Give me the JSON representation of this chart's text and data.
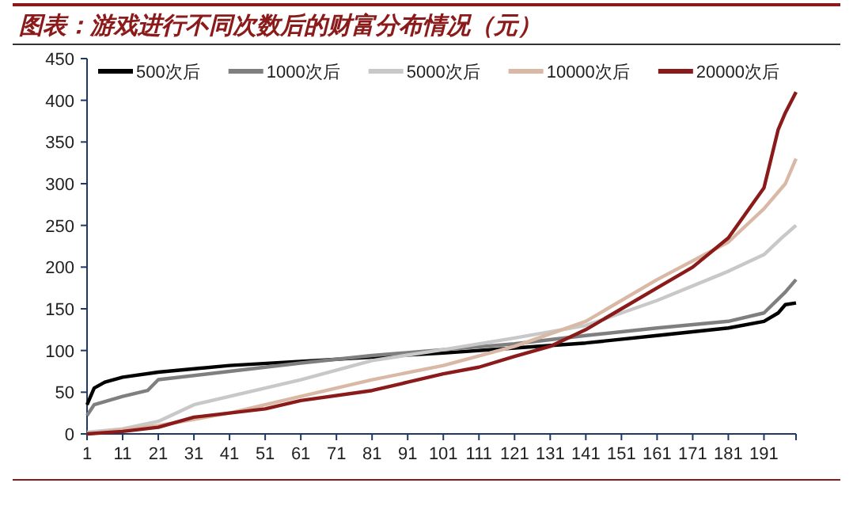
{
  "chart_data": {
    "type": "line",
    "title": "图表：游戏进行不同次数后的财富分布情况（元）",
    "xlim": [
      1,
      200
    ],
    "xticks": [
      1,
      11,
      21,
      31,
      41,
      51,
      61,
      71,
      81,
      91,
      101,
      111,
      121,
      131,
      141,
      151,
      161,
      171,
      181,
      191
    ],
    "ylim": [
      0,
      450
    ],
    "yticks": [
      0,
      50,
      100,
      150,
      200,
      250,
      300,
      350,
      400,
      450
    ],
    "legend": "top",
    "grid": false,
    "marker": "none",
    "line_style": "solid",
    "series": [
      {
        "name": "500次后",
        "color": "#000000",
        "x": [
          1,
          3,
          6,
          11,
          21,
          41,
          61,
          81,
          101,
          121,
          141,
          161,
          181,
          191,
          195,
          197,
          200
        ],
        "values": [
          35,
          55,
          62,
          68,
          74,
          82,
          87,
          92,
          97,
          103,
          109,
          118,
          127,
          135,
          145,
          155,
          157
        ]
      },
      {
        "name": "1000次后",
        "color": "#7f7f7f",
        "x": [
          1,
          3,
          11,
          18,
          21,
          41,
          61,
          81,
          101,
          121,
          141,
          161,
          181,
          191,
          197,
          200
        ],
        "values": [
          22,
          35,
          45,
          52,
          65,
          75,
          85,
          94,
          101,
          108,
          118,
          127,
          135,
          145,
          170,
          185
        ]
      },
      {
        "name": "5000次后",
        "color": "#c8c8c8",
        "x": [
          1,
          11,
          21,
          31,
          51,
          61,
          81,
          101,
          121,
          141,
          161,
          181,
          191,
          196,
          200
        ],
        "values": [
          2,
          6,
          15,
          35,
          55,
          65,
          88,
          101,
          115,
          130,
          160,
          195,
          215,
          235,
          250
        ]
      },
      {
        "name": "10000次后",
        "color": "#d9b9a6",
        "x": [
          1,
          21,
          41,
          61,
          81,
          101,
          121,
          141,
          161,
          181,
          191,
          197,
          200
        ],
        "values": [
          0,
          10,
          25,
          45,
          65,
          82,
          105,
          135,
          185,
          230,
          270,
          300,
          330
        ]
      },
      {
        "name": "20000次后",
        "color": "#8b1a1a",
        "x": [
          1,
          11,
          21,
          31,
          51,
          61,
          81,
          91,
          101,
          111,
          121,
          131,
          141,
          151,
          161,
          171,
          181,
          191,
          193,
          195,
          197,
          200
        ],
        "values": [
          0,
          3,
          8,
          20,
          30,
          40,
          52,
          62,
          72,
          80,
          93,
          105,
          125,
          150,
          175,
          200,
          235,
          295,
          330,
          365,
          385,
          410
        ]
      }
    ]
  }
}
